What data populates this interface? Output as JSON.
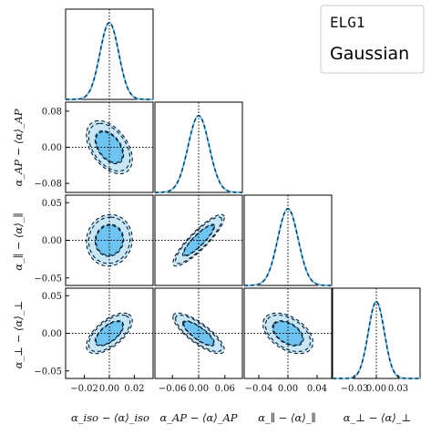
{
  "chart_data": {
    "type": "corner",
    "colors": {
      "fill_inner": "#6ec3f0",
      "fill_outer": "#c9e6f7",
      "line_elg": "#7cc8f0",
      "line_gauss": "#0a1e2e"
    },
    "legend": {
      "position": "top-right",
      "entries": [
        {
          "label": "ELG1",
          "color": "#7cc8f0",
          "style": "solid"
        },
        {
          "label": "Gaussian",
          "color": "#000000",
          "style": "dashed"
        }
      ]
    },
    "parameters": [
      {
        "name": "iso",
        "label": "α_iso − ⟨α⟩_iso",
        "range": [
          -0.035,
          0.035
        ],
        "ticks": [
          -0.02,
          0.0,
          0.02
        ],
        "tick_labels": [
          "−0.02",
          "0.00",
          "0.02"
        ],
        "sigma": 0.0075
      },
      {
        "name": "AP",
        "label": "α_AP − ⟨α⟩_AP",
        "range": [
          -0.1,
          0.1
        ],
        "ticks": [
          -0.08,
          0.0,
          0.08
        ],
        "tick_labels": [
          "−0.08",
          "0.00",
          "0.08"
        ],
        "y_tick_labels": [
          "−0.08",
          "0.00",
          "0.08"
        ],
        "x_ticks": [
          -0.06,
          0.0,
          0.06
        ],
        "x_tick_labels": [
          "−0.06",
          "0.00",
          "0.06"
        ],
        "sigma": 0.024
      },
      {
        "name": "par",
        "label": "α_∥ − ⟨α⟩_∥",
        "range": [
          -0.06,
          0.06
        ],
        "ticks": [
          -0.05,
          0.0,
          0.05
        ],
        "tick_labels": [
          "−0.05",
          "0.00",
          "0.05"
        ],
        "x_ticks": [
          -0.04,
          0.0,
          0.04
        ],
        "x_tick_labels": [
          "−0.04",
          "0.00",
          "0.04"
        ],
        "sigma": 0.014
      },
      {
        "name": "perp",
        "label": "α_⊥ − ⟨α⟩_⊥",
        "range": [
          -0.06,
          0.06
        ],
        "ticks": [
          -0.05,
          0.0,
          0.05
        ],
        "tick_labels": [
          "−0.05",
          "0.00",
          "0.05"
        ],
        "x_ticks": [
          -0.03,
          0.0,
          0.03
        ],
        "x_tick_labels": [
          "−0.03",
          "0.00",
          "0.03"
        ],
        "sigma": 0.011
      }
    ],
    "correlations": [
      {
        "x": "iso",
        "y": "AP",
        "rho": -0.45
      },
      {
        "x": "iso",
        "y": "par",
        "rho": 0.05
      },
      {
        "x": "AP",
        "y": "par",
        "rho": 0.88
      },
      {
        "x": "iso",
        "y": "perp",
        "rho": 0.62
      },
      {
        "x": "AP",
        "y": "perp",
        "rho": -0.8
      },
      {
        "x": "par",
        "y": "perp",
        "rho": -0.45
      }
    ],
    "contour_levels_sigma": [
      1,
      2
    ],
    "mean_marker": [
      0,
      0,
      0,
      0
    ]
  },
  "labels": {
    "x": [
      "α_iso − ⟨α⟩_iso",
      "α_AP − ⟨α⟩_AP",
      "α_∥ − ⟨α⟩_∥",
      "α_⊥ − ⟨α⟩_⊥"
    ],
    "y": [
      "α_AP − ⟨α⟩_AP",
      "α_∥ − ⟨α⟩_∥",
      "α_⊥ − ⟨α⟩_⊥"
    ]
  }
}
